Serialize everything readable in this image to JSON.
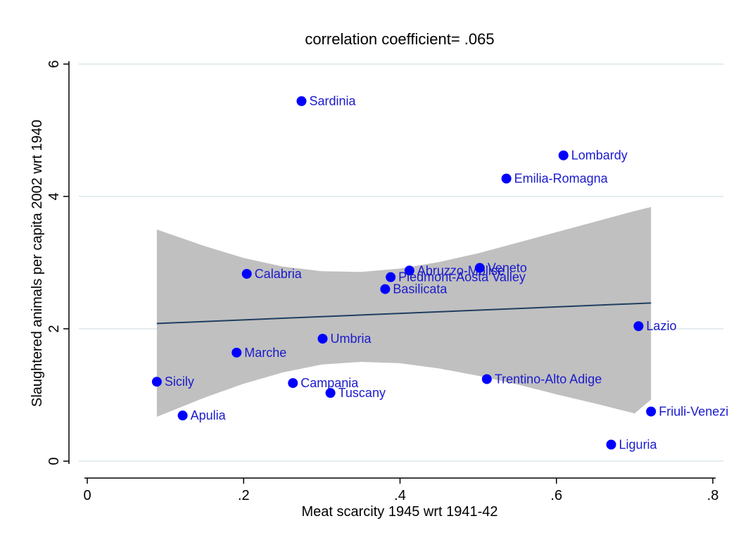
{
  "chart_data": {
    "type": "scatter",
    "title": "correlation coefficient= .065",
    "xlabel": "Meat scarcity 1945 wrt 1941-42",
    "ylabel": "Slaughtered animals per capita 2002 wrt 1940",
    "xlim": [
      0,
      0.8
    ],
    "ylim": [
      0,
      6
    ],
    "xticks": [
      {
        "value": 0,
        "label": "0"
      },
      {
        "value": 0.2,
        "label": ".2"
      },
      {
        "value": 0.4,
        "label": ".4"
      },
      {
        "value": 0.6,
        "label": ".6"
      },
      {
        "value": 0.8,
        "label": ".8"
      }
    ],
    "yticks": [
      {
        "value": 0,
        "label": "0"
      },
      {
        "value": 2,
        "label": "2"
      },
      {
        "value": 4,
        "label": "4"
      },
      {
        "value": 6,
        "label": "6"
      }
    ],
    "grid": "horizontal",
    "points": [
      {
        "label": "Sardinia",
        "x": 0.274,
        "y": 5.44
      },
      {
        "label": "Lombardy",
        "x": 0.609,
        "y": 4.62
      },
      {
        "label": "Emilia-Romagna",
        "x": 0.536,
        "y": 4.27
      },
      {
        "label": "Calabria",
        "x": 0.204,
        "y": 2.83
      },
      {
        "label": "Abruzzo-Molise",
        "x": 0.412,
        "y": 2.88
      },
      {
        "label": "Veneto",
        "x": 0.502,
        "y": 2.92
      },
      {
        "label": "Piedmont-Aosta Valley",
        "x": 0.388,
        "y": 2.78
      },
      {
        "label": "Basilicata",
        "x": 0.381,
        "y": 2.6
      },
      {
        "label": "Lazio",
        "x": 0.705,
        "y": 2.04
      },
      {
        "label": "Umbria",
        "x": 0.301,
        "y": 1.85
      },
      {
        "label": "Marche",
        "x": 0.191,
        "y": 1.64
      },
      {
        "label": "Sicily",
        "x": 0.089,
        "y": 1.2
      },
      {
        "label": "Campania",
        "x": 0.263,
        "y": 1.18
      },
      {
        "label": "Trentino-Alto Adige",
        "x": 0.511,
        "y": 1.24
      },
      {
        "label": "Tuscany",
        "x": 0.311,
        "y": 1.03
      },
      {
        "label": "Apulia",
        "x": 0.122,
        "y": 0.69
      },
      {
        "label": "Friuli-Venezia Giulia",
        "x": 0.721,
        "y": 0.75
      },
      {
        "label": "Liguria",
        "x": 0.67,
        "y": 0.25
      }
    ],
    "fit": {
      "x": [
        0.089,
        0.721
      ],
      "y": [
        2.08,
        2.39
      ]
    },
    "ci_band": {
      "x": [
        0.089,
        0.15,
        0.2,
        0.25,
        0.3,
        0.35,
        0.4,
        0.45,
        0.5,
        0.55,
        0.6,
        0.65,
        0.7,
        0.721
      ],
      "upper": [
        3.5,
        3.25,
        3.07,
        2.94,
        2.87,
        2.86,
        2.91,
        3.01,
        3.14,
        3.3,
        3.46,
        3.62,
        3.78,
        3.84
      ],
      "lower": [
        0.67,
        0.96,
        1.17,
        1.34,
        1.46,
        1.5,
        1.48,
        1.4,
        1.29,
        1.16,
        1.01,
        0.87,
        0.72,
        0.93
      ]
    },
    "colors": {
      "point": "#0000ff",
      "label": "#1a1acc",
      "fit_line": "#1f3f5f",
      "ci_band": "#c0c0c0",
      "grid": "#dbe6ea",
      "axis": "#000000"
    }
  }
}
